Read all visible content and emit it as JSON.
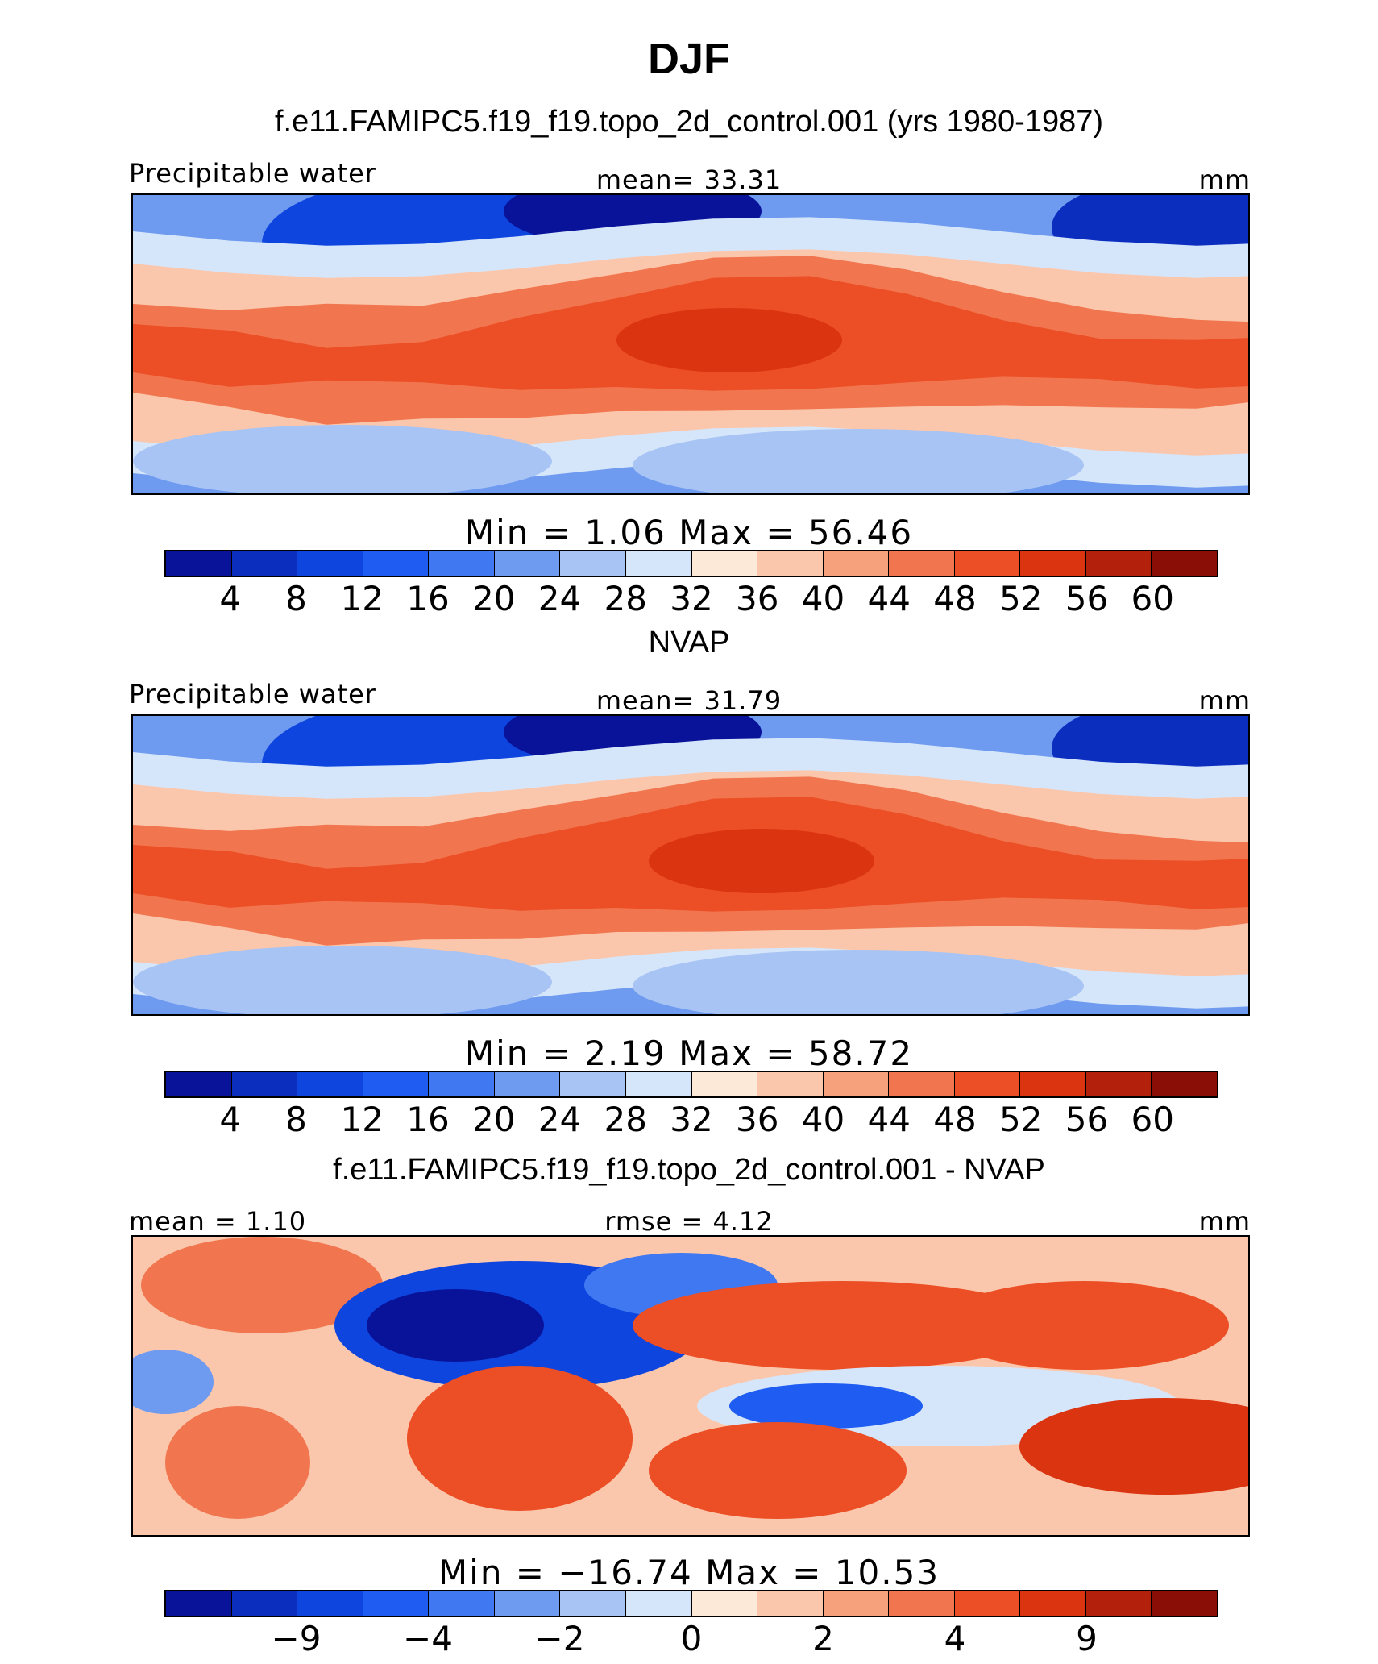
{
  "title": "DJF",
  "colors": [
    "#08139a",
    "#0c2ebf",
    "#0e45df",
    "#1e5cf2",
    "#3f78f0",
    "#6e9af0",
    "#a8c4f4",
    "#d6e6fa",
    "#fde9d8",
    "#fbc7ac",
    "#f6a07c",
    "#f1764f",
    "#ec4e25",
    "#da3410",
    "#b3200c",
    "#8a0e05"
  ],
  "panels": [
    {
      "title": "f.e11.FAMIPC5.f19_f19.topo_2d_control.001 (yrs 1980-1987)",
      "left_label": "Precipitable water",
      "center_label": "mean=   33.31",
      "right_label": "mm",
      "minmax": "Min  =      1.06  Max  =    56.46",
      "ticks": [
        "4",
        "8",
        "12",
        "16",
        "20",
        "24",
        "28",
        "32",
        "36",
        "40",
        "44",
        "48",
        "52",
        "56",
        "60"
      ],
      "map_data": {
        "field": "model precipitable water",
        "units": "mm",
        "season": "DJF",
        "min": 1.06,
        "max": 56.46,
        "mean": 33.31
      }
    },
    {
      "title": "NVAP",
      "left_label": "Precipitable water",
      "center_label": "mean=   31.79",
      "right_label": "mm",
      "minmax": "Min  =    2.19  Max  =    58.72",
      "ticks": [
        "4",
        "8",
        "12",
        "16",
        "20",
        "24",
        "28",
        "32",
        "36",
        "40",
        "44",
        "48",
        "52",
        "56",
        "60"
      ],
      "map_data": {
        "field": "observed precipitable water (NVAP)",
        "units": "mm",
        "season": "DJF",
        "min": 2.19,
        "max": 58.72,
        "mean": 31.79
      }
    },
    {
      "title": "f.e11.FAMIPC5.f19_f19.topo_2d_control.001 - NVAP",
      "left_label": "mean  =     1.10",
      "center_label": "rmse  =     4.12",
      "right_label": "mm",
      "minmax": "Min  = −16.74  Max  =    10.53",
      "ticks": [
        "−9",
        "−4",
        "−2",
        "0",
        "2",
        "4",
        "9"
      ],
      "map_data": {
        "field": "difference (model - NVAP)",
        "units": "mm",
        "season": "DJF",
        "min": -16.74,
        "max": 10.53,
        "mean": 1.1,
        "rmse": 4.12
      }
    }
  ]
}
